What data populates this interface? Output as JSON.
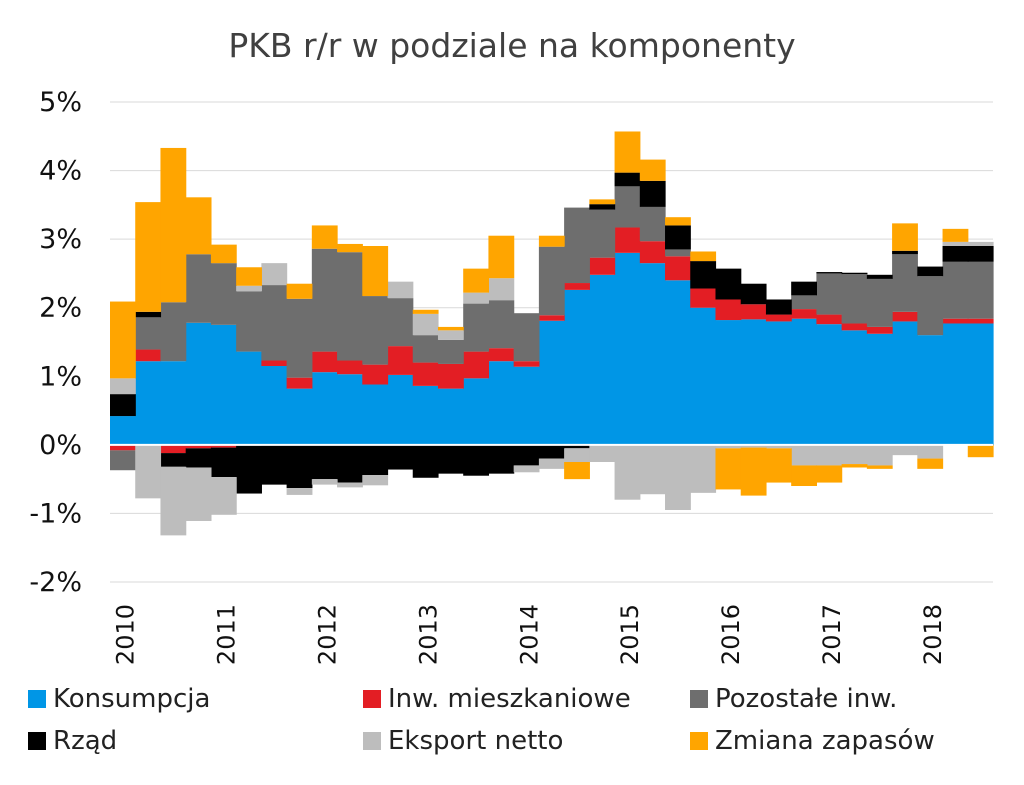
{
  "chart_data": {
    "type": "bar",
    "stacked": true,
    "title": "PKB r/r w podziale na komponenty",
    "xlabel": "",
    "ylabel": "",
    "ylim": [
      -2,
      5
    ],
    "yticks": [
      "5%",
      "4%",
      "3%",
      "2%",
      "1%",
      "0%",
      "-1%",
      "-2%"
    ],
    "ytick_values": [
      5,
      4,
      3,
      2,
      1,
      0,
      -1,
      -2
    ],
    "year_labels": [
      "2010",
      "2011",
      "2012",
      "2013",
      "2014",
      "2015",
      "2016",
      "2017",
      "2018"
    ],
    "grid": true,
    "legend_position": "bottom",
    "categories": [
      "2010Q1",
      "2010Q2",
      "2010Q3",
      "2010Q4",
      "2011Q1",
      "2011Q2",
      "2011Q3",
      "2011Q4",
      "2012Q1",
      "2012Q2",
      "2012Q3",
      "2012Q4",
      "2013Q1",
      "2013Q2",
      "2013Q3",
      "2013Q4",
      "2014Q1",
      "2014Q2",
      "2014Q3",
      "2014Q4",
      "2015Q1",
      "2015Q2",
      "2015Q3",
      "2015Q4",
      "2016Q1",
      "2016Q2",
      "2016Q3",
      "2016Q4",
      "2017Q1",
      "2017Q2",
      "2017Q3",
      "2017Q4",
      "2018Q1",
      "2018Q2",
      "2018Q3"
    ],
    "series": [
      {
        "name": "Konsumpcja",
        "color": "#0096E6",
        "values": [
          0.42,
          1.22,
          1.22,
          1.78,
          1.75,
          1.36,
          1.15,
          0.82,
          1.06,
          1.03,
          0.88,
          1.02,
          0.86,
          0.82,
          0.97,
          1.22,
          1.14,
          1.81,
          2.26,
          2.48,
          2.8,
          2.65,
          2.4,
          2.0,
          1.82,
          1.83,
          1.8,
          1.84,
          1.76,
          1.67,
          1.62,
          1.8,
          1.6,
          1.77,
          1.77
        ]
      },
      {
        "name": "Inw. mieszkaniowe",
        "color": "#E31E24",
        "values": [
          -0.08,
          0.17,
          -0.12,
          -0.05,
          -0.04,
          -0.01,
          0.08,
          0.16,
          0.3,
          0.2,
          0.29,
          0.42,
          0.34,
          0.36,
          0.39,
          0.19,
          0.08,
          0.08,
          0.1,
          0.25,
          0.37,
          0.32,
          0.35,
          0.28,
          0.3,
          0.22,
          0.1,
          0.14,
          0.14,
          0.1,
          0.1,
          0.14,
          0.0,
          0.07,
          0.07
        ]
      },
      {
        "name": "Pozostałe inw.",
        "color": "#6E6E6E",
        "values": [
          -0.29,
          0.47,
          0.86,
          1.0,
          0.9,
          0.88,
          1.1,
          1.15,
          1.5,
          1.58,
          1.0,
          0.7,
          0.4,
          0.35,
          0.7,
          0.7,
          0.7,
          1.0,
          1.1,
          0.7,
          0.6,
          0.5,
          0.1,
          0.0,
          0.0,
          0.0,
          0.0,
          0.2,
          0.6,
          0.72,
          0.7,
          0.84,
          0.86,
          0.83,
          0.83
        ]
      },
      {
        "name": "Rząd",
        "color": "#000000",
        "values": [
          0.32,
          0.08,
          -0.2,
          -0.28,
          -0.43,
          -0.7,
          -0.58,
          -0.63,
          -0.5,
          -0.55,
          -0.44,
          -0.36,
          -0.48,
          -0.42,
          -0.45,
          -0.42,
          -0.3,
          -0.2,
          -0.05,
          0.08,
          0.2,
          0.38,
          0.35,
          0.4,
          0.45,
          0.3,
          0.22,
          0.2,
          0.02,
          0.02,
          0.06,
          0.05,
          0.14,
          0.23,
          0.23
        ]
      },
      {
        "name": "Eksport netto",
        "color": "#BDBDBD",
        "values": [
          0.23,
          -0.78,
          -1.0,
          -0.78,
          -0.55,
          0.08,
          0.32,
          -0.1,
          -0.08,
          -0.07,
          -0.15,
          0.24,
          0.31,
          0.14,
          0.16,
          0.32,
          -0.1,
          -0.15,
          -0.2,
          -0.25,
          -0.8,
          -0.72,
          -0.95,
          -0.7,
          -0.05,
          -0.04,
          -0.05,
          -0.3,
          -0.3,
          -0.28,
          -0.3,
          -0.15,
          -0.2,
          0.06,
          0.06
        ]
      },
      {
        "name": "Zmiana zapasów",
        "color": "#FFA500",
        "values": [
          1.12,
          1.6,
          2.25,
          0.83,
          0.27,
          0.27,
          0.0,
          0.22,
          0.34,
          0.12,
          0.73,
          0.0,
          0.06,
          0.05,
          0.35,
          0.62,
          0.0,
          0.16,
          -0.25,
          0.07,
          0.6,
          0.31,
          0.12,
          0.14,
          -0.6,
          -0.7,
          -0.5,
          -0.3,
          -0.25,
          -0.05,
          -0.05,
          0.4,
          -0.15,
          0.19,
          -0.18
        ]
      }
    ],
    "extra_negative": {
      "note_values_index": [
        7,
        12
      ],
      "eksport_extra": [
        -0.88,
        -0.39
      ],
      "zapasy_extra": [
        -0.82,
        -0.52
      ]
    }
  }
}
